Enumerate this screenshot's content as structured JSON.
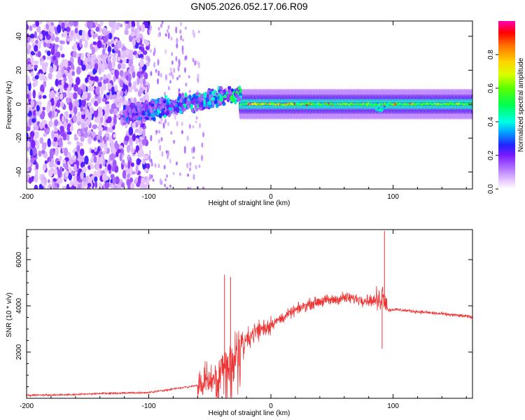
{
  "chart_data": [
    {
      "type": "heatmap",
      "title": "GN05.2026.052.17.06.R09",
      "xlabel": "Height of straight line (km)",
      "ylabel": "Frequency (Hz)",
      "xlim": [
        -200,
        165
      ],
      "ylim": [
        -50,
        49
      ],
      "xticks": [
        -200,
        -100,
        0,
        100
      ],
      "xtick_labels": [
        "-200",
        "-100",
        "0",
        "100"
      ],
      "yticks": [
        -40,
        -20,
        0,
        20,
        40
      ],
      "ytick_labels": [
        "-40",
        "-20",
        "0",
        "20",
        "40"
      ],
      "colorbar": {
        "label": "Normalized spectral amplitude",
        "range": [
          0,
          1
        ],
        "ticks": [
          0,
          0.2,
          0.4,
          0.6,
          0.8
        ],
        "tick_labels": [
          "0.0",
          "0.2",
          "0.4",
          "0.6",
          "0.8"
        ]
      },
      "regions": [
        {
          "x": [
            -200,
            -100
          ],
          "freq_spread": [
            -50,
            49
          ],
          "amplitude": [
            0.05,
            0.25
          ],
          "description": "scattered noise"
        },
        {
          "x": [
            -120,
            -25
          ],
          "freq_spread": [
            -15,
            15
          ],
          "amplitude": [
            0.1,
            0.45
          ],
          "description": "rising scatter"
        },
        {
          "x": [
            -25,
            165
          ],
          "freq_spread": [
            -3,
            3
          ],
          "amplitude": [
            0.3,
            1.0
          ],
          "description": "narrow band near 0 Hz"
        }
      ]
    },
    {
      "type": "line",
      "xlabel": "Height of straight line (km)",
      "ylabel": "SNR (10 * v/v)",
      "xlim": [
        -200,
        165
      ],
      "ylim": [
        0,
        7300
      ],
      "xticks": [
        -200,
        -100,
        0,
        100
      ],
      "xtick_labels": [
        "-200",
        "-100",
        "0",
        "100"
      ],
      "yticks": [
        2000,
        4000,
        6000
      ],
      "ytick_labels": [
        "2000",
        "4000",
        "6000"
      ],
      "color": "#ee3333",
      "series": [
        {
          "name": "SNR",
          "x": [
            -200,
            -180,
            -160,
            -140,
            -120,
            -100,
            -90,
            -80,
            -70,
            -60,
            -50,
            -45,
            -40,
            -35,
            -30,
            -25,
            -20,
            -15,
            -10,
            -5,
            0,
            10,
            20,
            30,
            40,
            50,
            60,
            70,
            80,
            88,
            92,
            96,
            100,
            110,
            120,
            130,
            140,
            150,
            160,
            165
          ],
          "values": [
            130,
            140,
            160,
            210,
            230,
            250,
            330,
            400,
            480,
            560,
            730,
            900,
            1300,
            1600,
            2000,
            2300,
            2550,
            2800,
            2950,
            3050,
            3200,
            3500,
            3800,
            4050,
            4200,
            4250,
            4350,
            4300,
            4250,
            4200,
            4600,
            3800,
            3850,
            3800,
            3750,
            3700,
            3650,
            3600,
            3550,
            3500
          ],
          "peaks": [
            {
              "x": -38,
              "value": 5350
            },
            {
              "x": -33,
              "value": 5250
            },
            {
              "x": 93,
              "value": 7250
            },
            {
              "x": 91,
              "value": 2150
            }
          ]
        }
      ]
    }
  ]
}
